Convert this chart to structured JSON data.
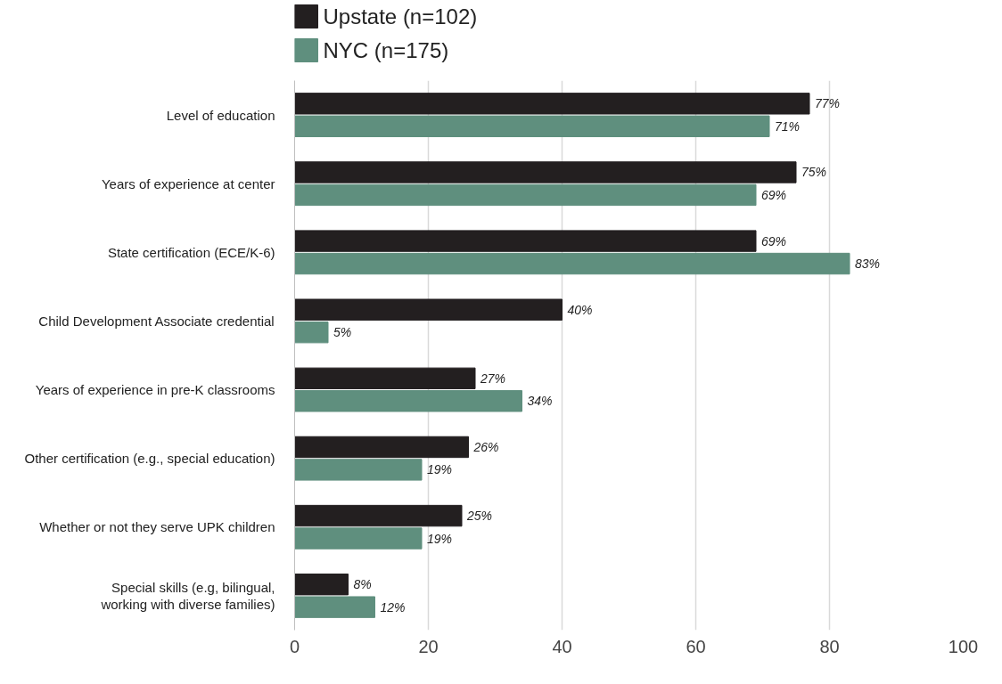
{
  "chart_data": {
    "type": "bar",
    "orientation": "horizontal",
    "categories": [
      "Level of education",
      "Years of experience at center",
      "State certification (ECE/K-6)",
      "Child Development Associate credential",
      "Years of experience in pre-K classrooms",
      "Other certification (e.g., special education)",
      "Whether or not they serve UPK children",
      "Special skills (e.g, bilingual,\nworking with diverse families)"
    ],
    "series": [
      {
        "name": "Upstate (n=102)",
        "color": "#231f20",
        "values": [
          77,
          75,
          69,
          40,
          27,
          26,
          25,
          8
        ],
        "value_labels": [
          "77%",
          "75%",
          "69%",
          "40%",
          "27%",
          "26%",
          "25%",
          "8%"
        ]
      },
      {
        "name": "NYC (n=175)",
        "color": "#5f8f7e",
        "values": [
          71,
          69,
          83,
          5,
          34,
          19,
          19,
          12
        ],
        "value_labels": [
          "71%",
          "69%",
          "83%",
          "5%",
          "34%",
          "19%",
          "19%",
          "12%"
        ]
      }
    ],
    "xlim": [
      0,
      100
    ],
    "xticks": [
      0,
      20,
      40,
      60,
      80,
      100
    ],
    "grid": "x",
    "legend": "top left"
  }
}
